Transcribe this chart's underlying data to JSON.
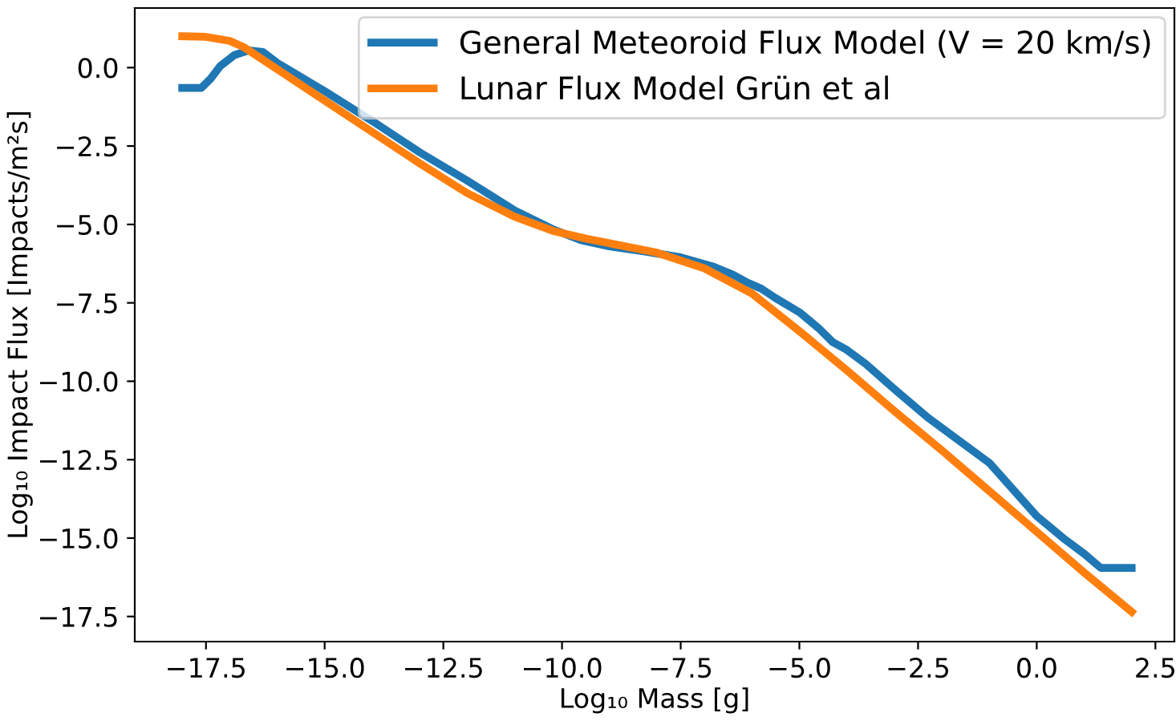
{
  "chart_data": {
    "type": "line",
    "xlabel": "Log₁₀ Mass [g]",
    "ylabel": "Log₁₀ Impact Flux [Impacts/m²s]",
    "legend": "top right",
    "grid": false,
    "xlim": [
      -19.0,
      2.9
    ],
    "ylim": [
      -18.3,
      1.9
    ],
    "xticks": [
      {
        "value": -17.5,
        "label": "−17.5"
      },
      {
        "value": -15.0,
        "label": "−15.0"
      },
      {
        "value": -12.5,
        "label": "−12.5"
      },
      {
        "value": -10.0,
        "label": "−10.0"
      },
      {
        "value": -7.5,
        "label": "−7.5"
      },
      {
        "value": -5.0,
        "label": "−5.0"
      },
      {
        "value": -2.5,
        "label": "−2.5"
      },
      {
        "value": 0.0,
        "label": "0.0"
      },
      {
        "value": 2.5,
        "label": "2.5"
      }
    ],
    "yticks": [
      {
        "value": 0.0,
        "label": "0.0"
      },
      {
        "value": -2.5,
        "label": "−2.5"
      },
      {
        "value": -5.0,
        "label": "−5.0"
      },
      {
        "value": -7.5,
        "label": "−7.5"
      },
      {
        "value": -10.0,
        "label": "−10.0"
      },
      {
        "value": -12.5,
        "label": "−12.5"
      },
      {
        "value": -15.0,
        "label": "−15.0"
      },
      {
        "value": -17.5,
        "label": "−17.5"
      }
    ],
    "series": [
      {
        "name": "General Meteoroid Flux Model (V = 20 km/s)",
        "color": "#1f77b4",
        "x": [
          -18.0,
          -17.6,
          -17.4,
          -17.2,
          -16.9,
          -16.6,
          -16.3,
          -16.0,
          -15.0,
          -14.0,
          -13.0,
          -12.0,
          -11.0,
          -10.2,
          -9.6,
          -9.0,
          -8.3,
          -7.5,
          -6.8,
          -6.4,
          -6.1,
          -5.8,
          -5.5,
          -5.0,
          -4.6,
          -4.3,
          -4.0,
          -3.6,
          -3.0,
          -2.3,
          -1.9,
          -1.0,
          -0.5,
          0.0,
          0.6,
          1.0,
          1.35,
          2.0
        ],
        "values": [
          -0.65,
          -0.65,
          -0.35,
          0.05,
          0.4,
          0.55,
          0.5,
          0.15,
          -0.75,
          -1.7,
          -2.7,
          -3.6,
          -4.55,
          -5.15,
          -5.5,
          -5.7,
          -5.85,
          -6.05,
          -6.35,
          -6.6,
          -6.85,
          -7.05,
          -7.35,
          -7.8,
          -8.3,
          -8.75,
          -9.0,
          -9.45,
          -10.25,
          -11.15,
          -11.6,
          -12.6,
          -13.45,
          -14.3,
          -15.05,
          -15.5,
          -15.95,
          -15.95
        ]
      },
      {
        "name": "Lunar Flux Model Grün et al",
        "color": "#ff7f0e",
        "x": [
          -18.0,
          -17.5,
          -17.0,
          -16.7,
          -16.4,
          -16.0,
          -15.0,
          -14.0,
          -13.0,
          -12.0,
          -11.0,
          -10.2,
          -9.5,
          -9.0,
          -8.0,
          -7.0,
          -6.0,
          -5.0,
          -4.0,
          -3.0,
          -2.0,
          -1.0,
          0.0,
          1.0,
          2.0
        ],
        "values": [
          1.0,
          0.98,
          0.85,
          0.65,
          0.35,
          -0.05,
          -1.05,
          -2.05,
          -3.05,
          -4.0,
          -4.75,
          -5.2,
          -5.45,
          -5.6,
          -5.9,
          -6.4,
          -7.2,
          -8.4,
          -9.65,
          -10.95,
          -12.2,
          -13.5,
          -14.8,
          -16.1,
          -17.35
        ]
      }
    ]
  }
}
